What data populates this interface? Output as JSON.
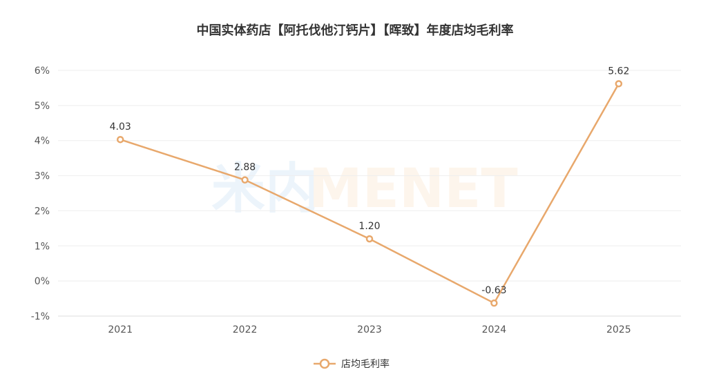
{
  "chart_data": {
    "type": "line",
    "title": "中国实体药店【阿托伐他汀钙片】【晖致】年度店均毛利率",
    "categories": [
      "2021",
      "2022",
      "2023",
      "2024",
      "2025"
    ],
    "series": [
      {
        "name": "店均毛利率",
        "values": [
          4.03,
          2.88,
          1.2,
          -0.63,
          5.62
        ],
        "labels": [
          "4.03",
          "2.88",
          "1.20",
          "-0.63",
          "5.62"
        ]
      }
    ],
    "y_ticks": [
      "6%",
      "5%",
      "4%",
      "3%",
      "2%",
      "1%",
      "0%",
      "-1%"
    ],
    "ylim": [
      -1,
      6
    ],
    "grid": true,
    "legend_position": "bottom-center",
    "watermark": {
      "cn": "米内",
      "en": "MENET"
    },
    "colors": {
      "line": "#e8a86c",
      "grid": "#eeeeee",
      "text": "#333333",
      "tick": "#555555"
    }
  }
}
